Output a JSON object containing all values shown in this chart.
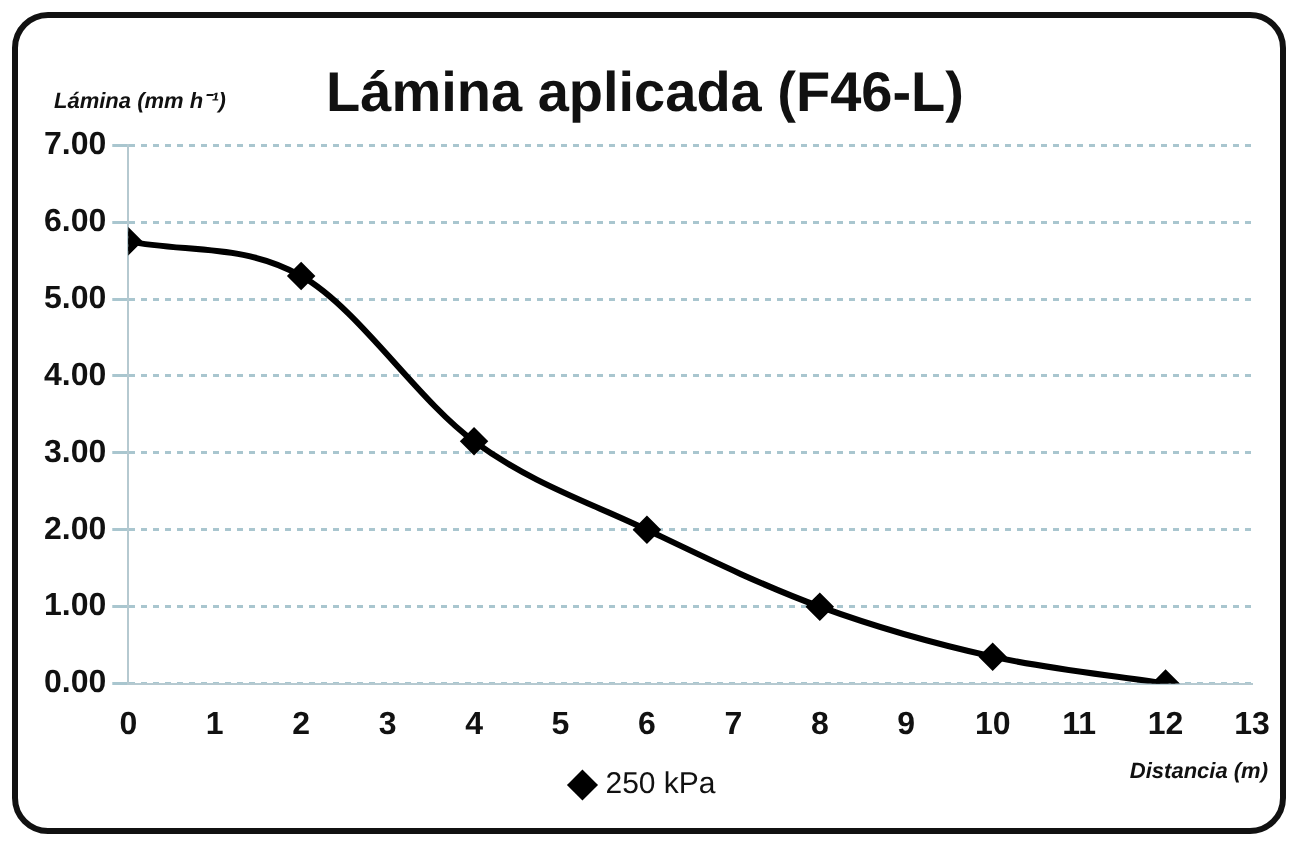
{
  "chart_data": {
    "type": "line",
    "title": "Lámina aplicada (F46-L)",
    "ylabel": "Lámina (mm h⁻¹)",
    "xlabel": "Distancia (m)",
    "x": [
      0,
      2,
      4,
      6,
      8,
      10,
      12
    ],
    "series": [
      {
        "name": "250 kPa",
        "color": "#000000",
        "values": [
          5.75,
          5.3,
          3.15,
          2.0,
          1.0,
          0.35,
          0.0
        ]
      }
    ],
    "xlim": [
      0,
      13
    ],
    "xticks": [
      0,
      1,
      2,
      3,
      4,
      5,
      6,
      7,
      8,
      9,
      10,
      11,
      12,
      13
    ],
    "ylim": [
      0,
      7
    ],
    "yticks": [
      {
        "value": 0,
        "label": "0.00"
      },
      {
        "value": 1,
        "label": "1.00"
      },
      {
        "value": 2,
        "label": "2.00"
      },
      {
        "value": 3,
        "label": "3.00"
      },
      {
        "value": 4,
        "label": "4.00"
      },
      {
        "value": 5,
        "label": "5.00"
      },
      {
        "value": 6,
        "label": "6.00"
      },
      {
        "value": 7,
        "label": "7.00"
      }
    ],
    "grid": "y",
    "legend": "bottom",
    "marker": "diamond",
    "line_style": "solid"
  }
}
